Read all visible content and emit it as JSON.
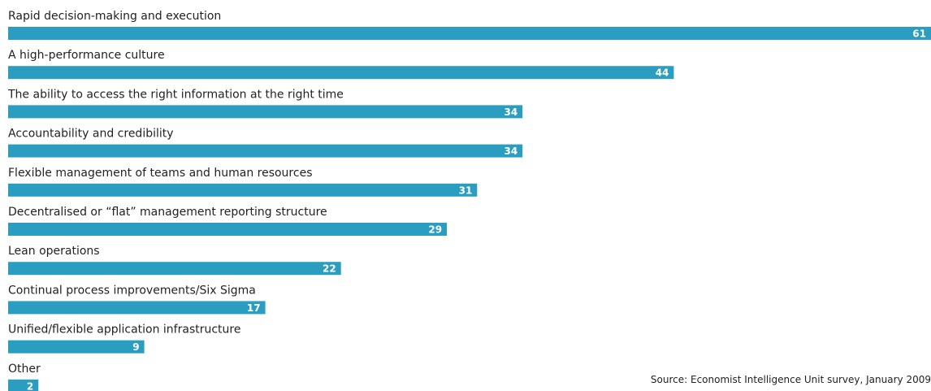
{
  "chart_data": {
    "type": "bar",
    "orientation": "horizontal",
    "categories": [
      "Rapid decision-making and execution",
      "A high-performance culture",
      "The ability to access the right information at the right time",
      "Accountability and credibility",
      "Flexible management of teams and human resources",
      "Decentralised or “flat” management reporting structure",
      "Lean operations",
      "Continual process improvements/Six Sigma",
      "Unified/flexible application infrastructure",
      "Other"
    ],
    "values": [
      61,
      44,
      34,
      34,
      31,
      29,
      22,
      17,
      9,
      2
    ],
    "xlim": [
      0,
      61
    ],
    "grid": false,
    "legend": "none",
    "bar_color": "#2a9dc0"
  },
  "source": "Source: Economist Intelligence Unit survey, January 2009"
}
